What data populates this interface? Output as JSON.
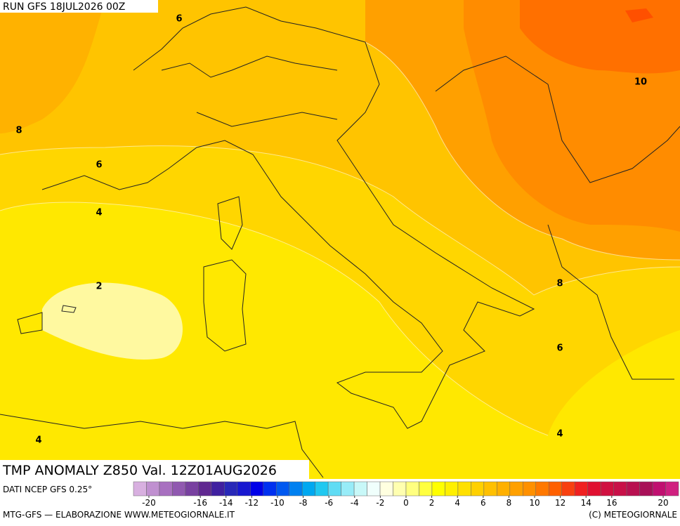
{
  "run_label": "RUN GFS 18JUL2026 00Z",
  "contour_labels": [
    "6",
    "8",
    "10",
    "6",
    "4",
    "2",
    "8",
    "6",
    "4",
    "4"
  ],
  "map_title": "TMP ANOMALY Z850 Val. 12Z01AUG2026",
  "source": "DATI NCEP GFS 0.25°",
  "footer_left": "MTG-GFS — ELABORAZIONE WWW.METEOGIORNALE.IT",
  "footer_right": "(C) METEOGIORNALE",
  "colorbar": {
    "colors": [
      "#d8b0e0",
      "#c090d0",
      "#a870c0",
      "#9058b0",
      "#7840a0",
      "#602890",
      "#4020a0",
      "#2828b8",
      "#1818d0",
      "#0000e8",
      "#0030f0",
      "#0058f0",
      "#0080f0",
      "#00a8f0",
      "#20c8f0",
      "#60dcf4",
      "#98ecf8",
      "#c8f8f8",
      "#f0fffc",
      "#ffffe0",
      "#ffffb0",
      "#ffff80",
      "#ffff40",
      "#ffff00",
      "#fff000",
      "#ffe000",
      "#ffd000",
      "#ffc000",
      "#ffb000",
      "#ffa000",
      "#ff9000",
      "#ff7800",
      "#ff6000",
      "#f84010",
      "#f02020",
      "#e01030",
      "#d01040",
      "#c81048",
      "#b81050",
      "#a81058",
      "#c01070",
      "#d02080"
    ],
    "min": -21.2,
    "max": 21.2,
    "ticks": [
      -20,
      -16,
      -14,
      -12,
      -10,
      -8,
      -6,
      -4,
      -2,
      0,
      2,
      4,
      6,
      8,
      10,
      12,
      14,
      16,
      20
    ]
  }
}
